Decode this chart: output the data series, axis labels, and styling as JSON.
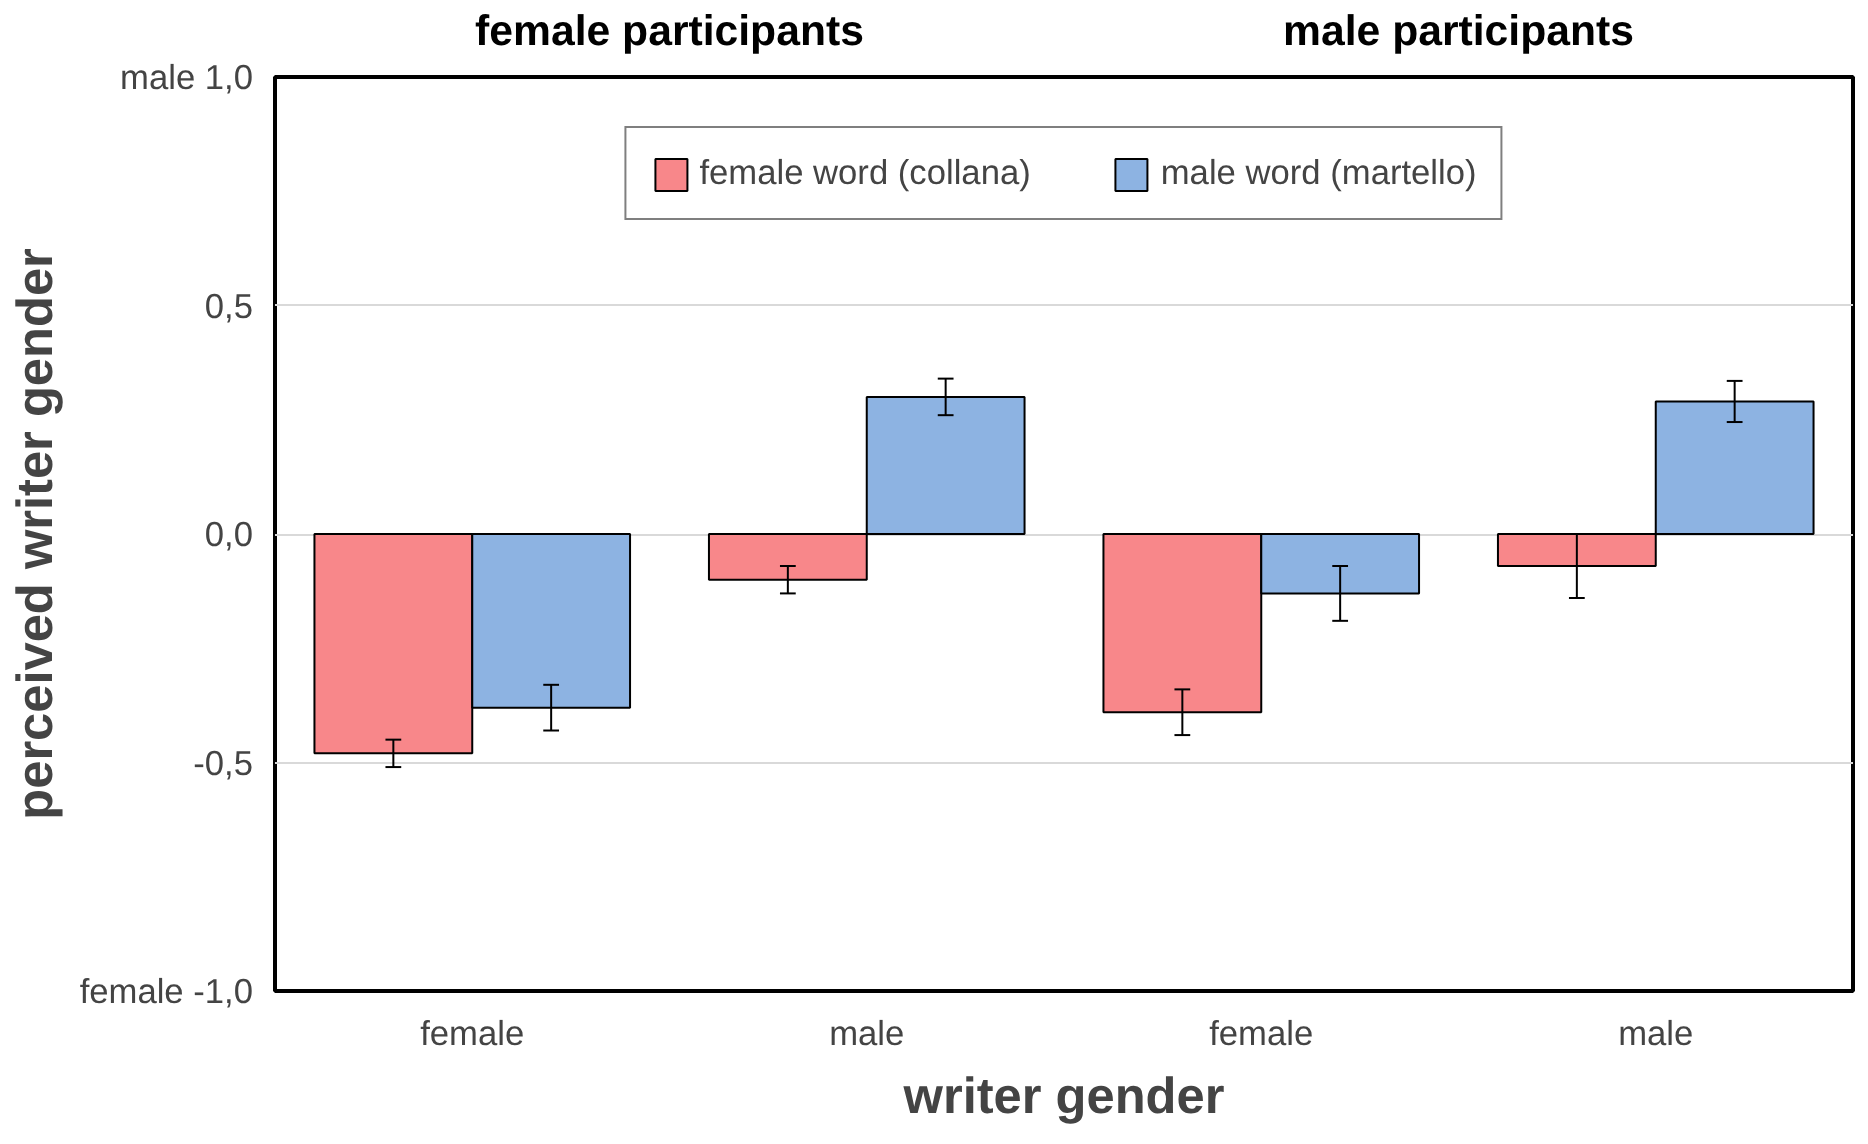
{
  "chart_data": {
    "type": "bar",
    "xlabel": "writer gender",
    "ylabel": "perceived writer gender",
    "categories": [
      "female",
      "male",
      "female",
      "male"
    ],
    "ylim": [
      -1.0,
      1.0
    ],
    "yticks": [
      {
        "value": -1.0,
        "label": "female -1,0"
      },
      {
        "value": -0.5,
        "label": "-0,5"
      },
      {
        "value": 0.0,
        "label": "0,0"
      },
      {
        "value": 0.5,
        "label": "0,5"
      },
      {
        "value": 1.0,
        "label": "male 1,0"
      }
    ],
    "grid": "y",
    "legend": "top",
    "annotations": [
      "female participants",
      "male participants"
    ],
    "series": [
      {
        "name": "female word (collana)",
        "color": "#f8878a",
        "values": [
          -0.48,
          -0.1,
          -0.39,
          -0.07
        ],
        "errors": [
          0.03,
          0.03,
          0.05,
          0.07
        ]
      },
      {
        "name": "male word (martello)",
        "color": "#8db3e2",
        "values": [
          -0.38,
          0.3,
          -0.13,
          0.29
        ],
        "errors": [
          0.05,
          0.04,
          0.06,
          0.045
        ]
      }
    ]
  }
}
